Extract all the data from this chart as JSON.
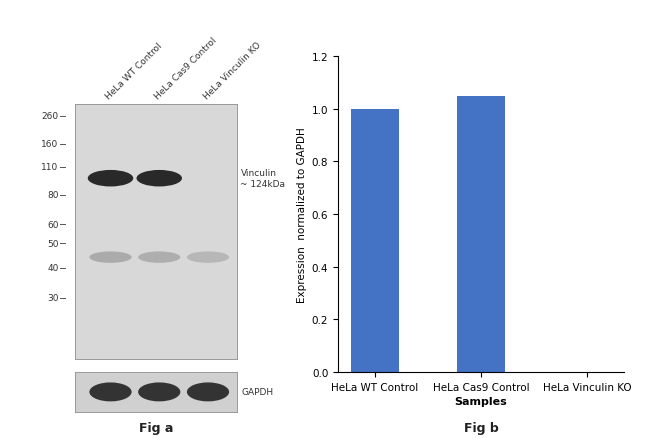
{
  "fig_a_title": "Fig a",
  "fig_b_title": "Fig b",
  "bar_categories": [
    "HeLa WT Control",
    "HeLa Cas9 Control",
    "HeLa Vinculin KO"
  ],
  "bar_values": [
    1.0,
    1.05,
    0.0
  ],
  "bar_color": "#4472C4",
  "ylabel": "Expression  normalized to GAPDH",
  "xlabel": "Samples",
  "ylim": [
    0,
    1.2
  ],
  "yticks": [
    0.0,
    0.2,
    0.4,
    0.6,
    0.8,
    1.0,
    1.2
  ],
  "wb_lane_labels": [
    "HeLa WT Control",
    "HeLa Cas9 Control",
    "HeLa Vinculin KO"
  ],
  "wb_mw_labels": [
    "260",
    "160",
    "110",
    "80",
    "60",
    "50",
    "40",
    "30"
  ],
  "vinculin_annotation": "Vinculin\n~ 124kDa",
  "gapdh_annotation": "GAPDH",
  "background_color": "#ffffff"
}
